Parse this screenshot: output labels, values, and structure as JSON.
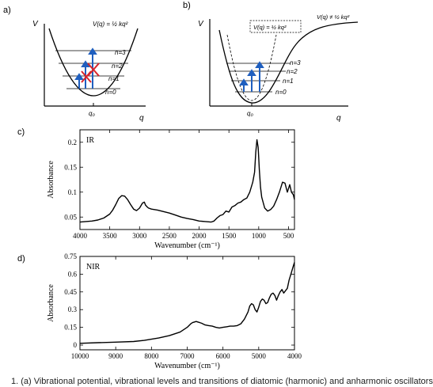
{
  "panels": {
    "a": {
      "label": "a)",
      "v_axis": "V",
      "q_axis": "q",
      "potential": "V(q) = ½ kq²",
      "q0": "q₀",
      "levels": [
        "n=3",
        "n=2",
        "n=1",
        "n=0"
      ]
    },
    "b": {
      "label": "b)",
      "v_axis": "V",
      "q_axis": "q",
      "harmonic": "V(q) = ½ kq²",
      "anharmonic": "V(q) ≠ ½ kq²",
      "q0": "q₀",
      "levels": [
        "n=3",
        "n=2",
        "n=1",
        "n=0"
      ]
    },
    "c": {
      "label": "c)"
    },
    "d": {
      "label": "d)"
    }
  },
  "chart_data": [
    {
      "type": "line",
      "panel": "c",
      "annotation": "IR",
      "xlabel": "Wavenumber (cm⁻¹)",
      "ylabel": "Absorbance",
      "xlim": [
        4000,
        400
      ],
      "ylim": [
        0.025,
        0.225
      ],
      "x_ticks": [
        4000,
        3500,
        3000,
        2500,
        2000,
        1500,
        1000,
        500
      ],
      "y_ticks": [
        0.05,
        0.1,
        0.15,
        0.2
      ],
      "y_tick_labels": [
        "0.05",
        "0.1",
        "0.15",
        "0.2"
      ],
      "grid": false,
      "series": [
        {
          "x": [
            4000,
            3900,
            3800,
            3700,
            3600,
            3500,
            3450,
            3400,
            3350,
            3300,
            3250,
            3200,
            3150,
            3100,
            3050,
            3000,
            2950,
            2920,
            2900,
            2870,
            2850,
            2800,
            2700,
            2600,
            2500,
            2400,
            2300,
            2200,
            2100,
            2000,
            1900,
            1800,
            1750,
            1700,
            1650,
            1600,
            1550,
            1500,
            1450,
            1400,
            1350,
            1300,
            1250,
            1200,
            1150,
            1100,
            1070,
            1050,
            1030,
            1010,
            1000,
            990,
            970,
            950,
            900,
            850,
            800,
            750,
            700,
            650,
            600,
            560,
            520,
            480,
            450,
            420,
            400
          ],
          "y": [
            0.04,
            0.041,
            0.042,
            0.044,
            0.048,
            0.056,
            0.064,
            0.075,
            0.087,
            0.093,
            0.092,
            0.085,
            0.075,
            0.066,
            0.063,
            0.068,
            0.078,
            0.08,
            0.074,
            0.07,
            0.068,
            0.066,
            0.064,
            0.061,
            0.058,
            0.054,
            0.05,
            0.047,
            0.045,
            0.042,
            0.041,
            0.04,
            0.042,
            0.048,
            0.053,
            0.055,
            0.062,
            0.06,
            0.07,
            0.073,
            0.078,
            0.08,
            0.085,
            0.088,
            0.1,
            0.12,
            0.14,
            0.18,
            0.205,
            0.19,
            0.17,
            0.145,
            0.11,
            0.09,
            0.068,
            0.062,
            0.065,
            0.072,
            0.085,
            0.101,
            0.12,
            0.118,
            0.1,
            0.115,
            0.1,
            0.095,
            0.085
          ]
        }
      ]
    },
    {
      "type": "line",
      "panel": "d",
      "annotation": "NIR",
      "xlabel": "Wavenumber (cm⁻¹)",
      "ylabel": "Absorbance",
      "xlim": [
        10000,
        4000
      ],
      "ylim": [
        -0.04,
        0.75
      ],
      "x_ticks": [
        10000,
        9000,
        8000,
        7000,
        6000,
        5000,
        4000
      ],
      "y_ticks": [
        0,
        0.15,
        0.3,
        0.45,
        0.6,
        0.75
      ],
      "y_tick_labels": [
        "0",
        "0.15",
        "0.3",
        "0.45",
        "0.6",
        "0.75"
      ],
      "grid": false,
      "series": [
        {
          "x": [
            10000,
            9500,
            9000,
            8500,
            8200,
            8000,
            7800,
            7500,
            7200,
            7000,
            6900,
            6850,
            6800,
            6750,
            6700,
            6650,
            6600,
            6500,
            6400,
            6300,
            6200,
            6100,
            6000,
            5900,
            5800,
            5700,
            5600,
            5500,
            5400,
            5300,
            5250,
            5200,
            5150,
            5100,
            5050,
            5000,
            4950,
            4900,
            4850,
            4800,
            4750,
            4700,
            4650,
            4600,
            4550,
            4500,
            4450,
            4400,
            4350,
            4300,
            4250,
            4200,
            4150,
            4100,
            4050,
            4000
          ],
          "y": [
            0.015,
            0.02,
            0.025,
            0.03,
            0.04,
            0.05,
            0.06,
            0.08,
            0.11,
            0.15,
            0.18,
            0.19,
            0.195,
            0.2,
            0.195,
            0.19,
            0.185,
            0.17,
            0.165,
            0.16,
            0.15,
            0.145,
            0.15,
            0.155,
            0.16,
            0.16,
            0.165,
            0.18,
            0.22,
            0.28,
            0.33,
            0.35,
            0.34,
            0.3,
            0.28,
            0.32,
            0.37,
            0.39,
            0.38,
            0.35,
            0.36,
            0.4,
            0.43,
            0.44,
            0.42,
            0.38,
            0.42,
            0.45,
            0.47,
            0.44,
            0.46,
            0.48,
            0.55,
            0.6,
            0.65,
            0.7
          ]
        }
      ]
    }
  ],
  "caption": "1. (a) Vibrational potential, vibrational levels and transitions of diatomic (harmonic) and anharmonic oscillators"
}
